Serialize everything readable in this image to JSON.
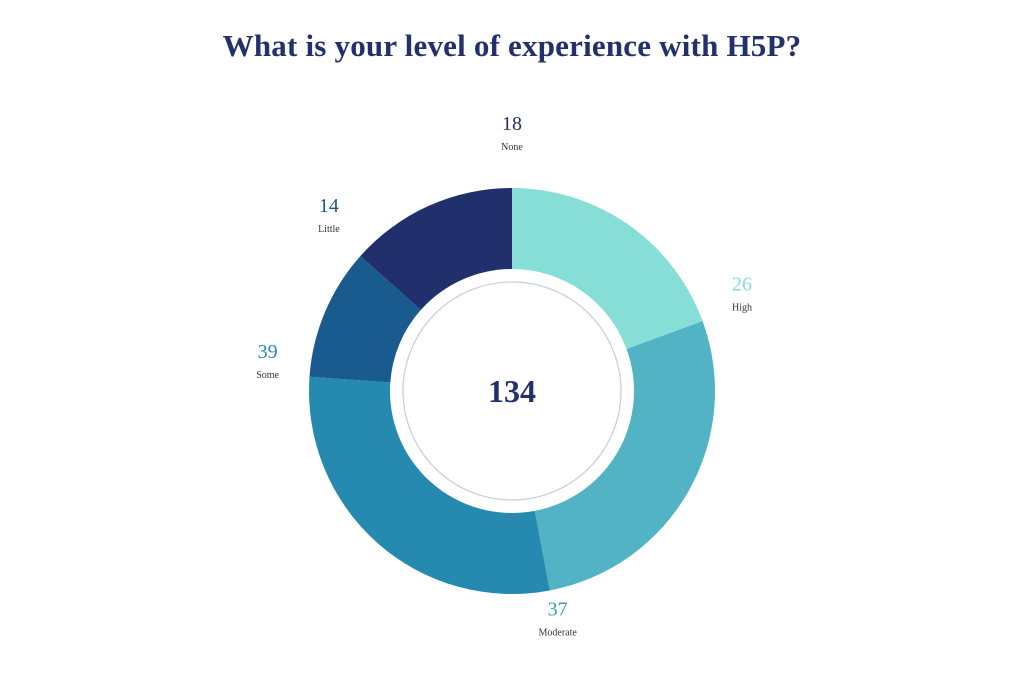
{
  "title": "What is your level of experience with H5P?",
  "chart_data": {
    "type": "pie",
    "variant": "donut",
    "title": "What is your level of experience with H5P?",
    "total": 134,
    "slices": [
      {
        "label": "High",
        "value": 26,
        "color": "#87ded6",
        "label_color": "#87ded6"
      },
      {
        "label": "Moderate",
        "value": 37,
        "color": "#51b3c4",
        "label_color": "#3f9fb6"
      },
      {
        "label": "Some",
        "value": 39,
        "color": "#268ab0",
        "label_color": "#268ab0"
      },
      {
        "label": "Little",
        "value": 14,
        "color": "#195a8f",
        "label_color": "#195a8f"
      },
      {
        "label": "None",
        "value": 18,
        "color": "#21306c",
        "label_color": "#21306c"
      }
    ]
  },
  "colors": {
    "title": "#22306b",
    "total": "#22306b",
    "category_text": "#333333",
    "inner_ring": "#c9cbe0"
  }
}
